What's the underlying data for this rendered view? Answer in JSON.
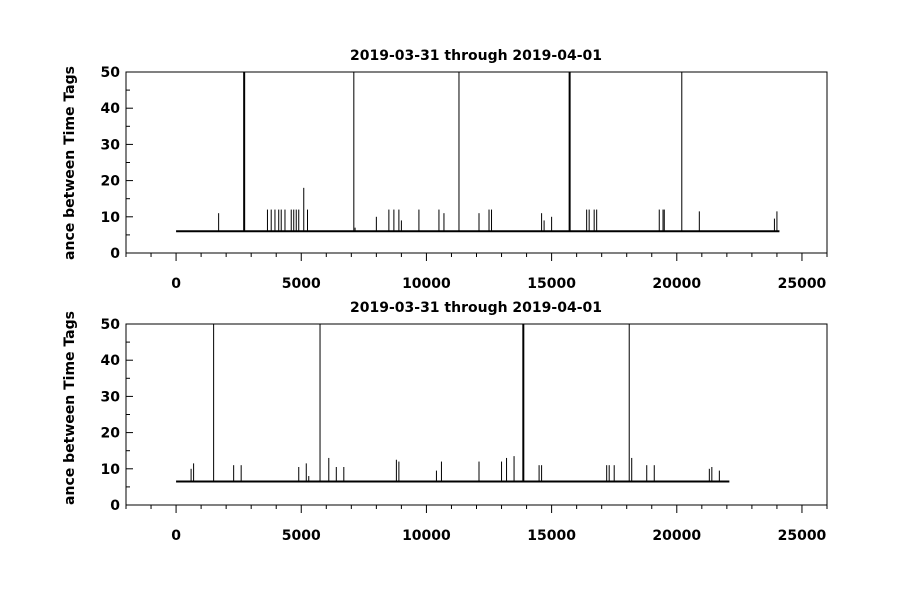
{
  "chart_data": [
    {
      "type": "line",
      "title": "2019-03-31 through 2019-04-01",
      "xlabel": "",
      "ylabel": "ance between Time Tags",
      "xlim": [
        -2000,
        26000
      ],
      "ylim": [
        0,
        50
      ],
      "xticks": [
        0,
        5000,
        10000,
        15000,
        20000,
        25000
      ],
      "yticks": [
        0,
        10,
        20,
        30,
        40,
        50
      ],
      "grid": false,
      "baseline": 6,
      "x_extent": [
        0,
        24100
      ],
      "spikes": {
        "x": [
          1700,
          2700,
          2720,
          2740,
          3650,
          3800,
          3950,
          4100,
          4200,
          4350,
          4600,
          4700,
          4800,
          4900,
          5100,
          5250,
          7100,
          7150,
          8000,
          8500,
          8700,
          8900,
          9000,
          9700,
          10500,
          10700,
          11300,
          12100,
          12500,
          12600,
          14600,
          14700,
          15000,
          15700,
          15720,
          15740,
          16400,
          16500,
          16700,
          16800,
          19300,
          19450,
          19500,
          20200,
          20900,
          23900,
          24000
        ],
        "y": [
          11,
          50,
          50,
          50,
          12,
          12,
          12,
          12,
          12,
          12,
          12,
          12,
          12,
          12,
          18,
          12,
          50,
          7,
          10,
          12,
          12,
          12,
          9,
          12,
          12,
          11,
          50,
          11,
          12,
          12,
          11,
          9,
          10,
          50,
          50,
          50,
          12,
          12,
          12,
          12,
          12,
          12,
          12,
          50,
          11.5,
          9.5,
          11.5
        ]
      }
    },
    {
      "type": "line",
      "title": "2019-03-31 through 2019-04-01",
      "xlabel": "",
      "ylabel": "ance between Time Tags",
      "xlim": [
        -2000,
        26000
      ],
      "ylim": [
        0,
        50
      ],
      "xticks": [
        0,
        5000,
        10000,
        15000,
        20000,
        25000
      ],
      "yticks": [
        0,
        10,
        20,
        30,
        40,
        50
      ],
      "grid": false,
      "baseline": 6.5,
      "x_extent": [
        0,
        22100
      ],
      "spikes": {
        "x": [
          600,
          700,
          1500,
          2300,
          2600,
          4900,
          5200,
          5300,
          5750,
          6100,
          6400,
          6700,
          8800,
          8900,
          10400,
          10600,
          12100,
          13000,
          13200,
          13500,
          13850,
          13870,
          13890,
          14500,
          14600,
          17200,
          17300,
          17500,
          18100,
          18200,
          18800,
          19100,
          21300,
          21400,
          21700
        ],
        "y": [
          10,
          11.5,
          50,
          11,
          11,
          10.5,
          11.5,
          8,
          50,
          13,
          10.5,
          10.5,
          12.5,
          12,
          9.5,
          12,
          12,
          12,
          13,
          13.5,
          50,
          50,
          50,
          11,
          11,
          11,
          11,
          11,
          50,
          13,
          11,
          11,
          10,
          10.5,
          9.5
        ]
      }
    }
  ]
}
